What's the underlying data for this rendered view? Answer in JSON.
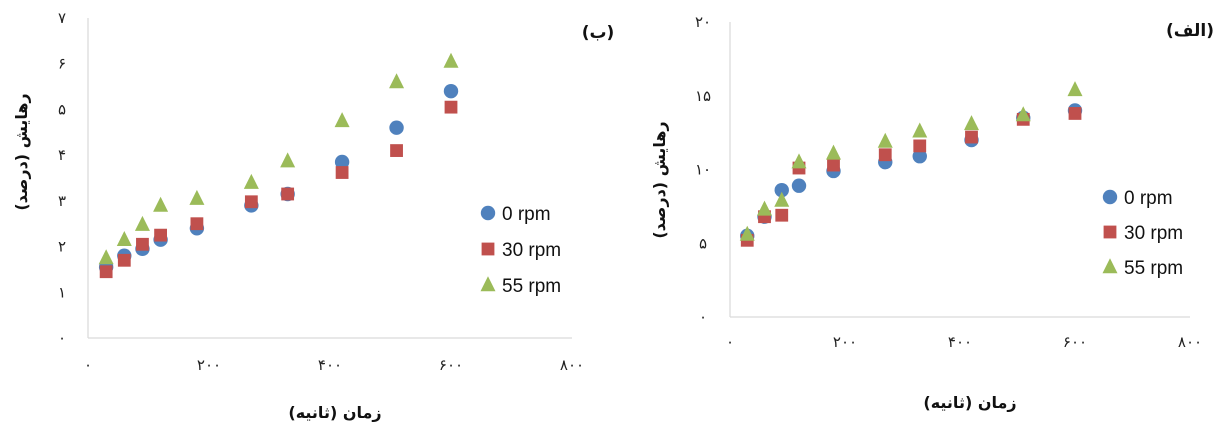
{
  "colors": {
    "rpm0": "#4f81bd",
    "rpm30": "#c0504d",
    "rpm55": "#9bbb59",
    "axis": "#d9d9d9",
    "text": "#111111"
  },
  "chart_data": [
    {
      "type": "scatter",
      "panel_label": "(ب)",
      "xlabel": "زمان (ثانیه)",
      "ylabel": "رهایش (درصد)",
      "xlim": [
        0,
        800
      ],
      "ylim": [
        0,
        7
      ],
      "x_ticks": [
        {
          "value": 0,
          "label": "۰"
        },
        {
          "value": 200,
          "label": "۲۰۰"
        },
        {
          "value": 400,
          "label": "۴۰۰"
        },
        {
          "value": 600,
          "label": "۶۰۰"
        },
        {
          "value": 800,
          "label": "۸۰۰"
        }
      ],
      "y_ticks": [
        {
          "value": 0,
          "label": "۰"
        },
        {
          "value": 1,
          "label": "۱"
        },
        {
          "value": 2,
          "label": "۲"
        },
        {
          "value": 3,
          "label": "۳"
        },
        {
          "value": 4,
          "label": "۴"
        },
        {
          "value": 5,
          "label": "۵"
        },
        {
          "value": 6,
          "label": "۶"
        },
        {
          "value": 7,
          "label": "۷"
        }
      ],
      "legend_position": "right",
      "series": [
        {
          "name": "0 rpm",
          "marker": "circle",
          "color": "#4f81bd",
          "x": [
            30,
            60,
            90,
            120,
            180,
            270,
            330,
            420,
            510,
            600
          ],
          "y": [
            1.55,
            1.8,
            1.95,
            2.15,
            2.4,
            2.9,
            3.15,
            3.85,
            4.6,
            5.4
          ]
        },
        {
          "name": "30 rpm",
          "marker": "square",
          "color": "#c0504d",
          "x": [
            30,
            60,
            90,
            120,
            180,
            270,
            330,
            420,
            510,
            600
          ],
          "y": [
            1.45,
            1.7,
            2.05,
            2.25,
            2.5,
            2.98,
            3.15,
            3.62,
            4.1,
            5.05
          ]
        },
        {
          "name": "55 rpm",
          "marker": "triangle",
          "color": "#9bbb59",
          "x": [
            30,
            60,
            90,
            120,
            180,
            270,
            330,
            420,
            510,
            600
          ],
          "y": [
            1.75,
            2.15,
            2.48,
            2.9,
            3.05,
            3.4,
            3.87,
            4.75,
            5.6,
            6.05
          ]
        }
      ]
    },
    {
      "type": "scatter",
      "panel_label": "(الف)",
      "xlabel": "زمان (ثانیه)",
      "ylabel": "رهایش (درصد)",
      "xlim": [
        0,
        800
      ],
      "ylim": [
        0,
        20
      ],
      "x_ticks": [
        {
          "value": 0,
          "label": "۰"
        },
        {
          "value": 200,
          "label": "۲۰۰"
        },
        {
          "value": 400,
          "label": "۴۰۰"
        },
        {
          "value": 600,
          "label": "۶۰۰"
        },
        {
          "value": 800,
          "label": "۸۰۰"
        }
      ],
      "y_ticks": [
        {
          "value": 0,
          "label": "۰"
        },
        {
          "value": 5,
          "label": "۵"
        },
        {
          "value": 10,
          "label": "۱۰"
        },
        {
          "value": 15,
          "label": "۱۵"
        },
        {
          "value": 20,
          "label": "۲۰"
        }
      ],
      "legend_position": "right",
      "series": [
        {
          "name": "0 rpm",
          "marker": "circle",
          "color": "#4f81bd",
          "x": [
            30,
            60,
            90,
            120,
            180,
            270,
            330,
            420,
            510,
            600
          ],
          "y": [
            5.5,
            6.8,
            8.6,
            8.9,
            9.9,
            10.5,
            10.9,
            12.0,
            13.5,
            14.0
          ]
        },
        {
          "name": "30 rpm",
          "marker": "square",
          "color": "#c0504d",
          "x": [
            30,
            60,
            90,
            120,
            180,
            270,
            330,
            420,
            510,
            600
          ],
          "y": [
            5.2,
            6.8,
            6.9,
            10.1,
            10.3,
            11.0,
            11.6,
            12.2,
            13.4,
            13.8
          ]
        },
        {
          "name": "55 rpm",
          "marker": "triangle",
          "color": "#9bbb59",
          "x": [
            30,
            60,
            90,
            120,
            180,
            270,
            330,
            420,
            510,
            600
          ],
          "y": [
            5.6,
            7.3,
            7.9,
            10.5,
            11.1,
            11.9,
            12.6,
            13.1,
            13.7,
            15.4
          ]
        }
      ]
    }
  ]
}
